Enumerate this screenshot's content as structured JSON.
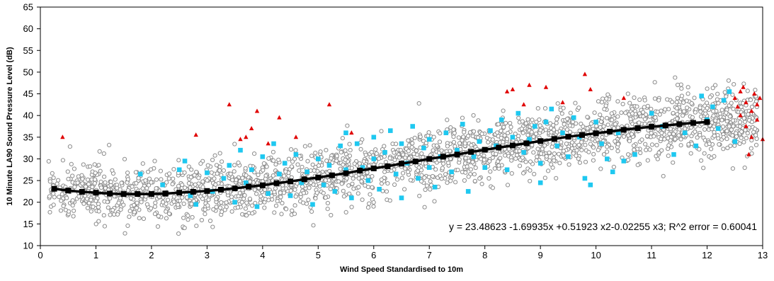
{
  "chart_data": {
    "type": "scatter",
    "title": "",
    "xlabel": "Wind Speed Standardised to 10m",
    "ylabel": "10 Minute LA90 Sound Pressure Level (dB)",
    "xlim": [
      0,
      13
    ],
    "ylim": [
      10,
      65
    ],
    "x_ticks": [
      0,
      1,
      2,
      3,
      4,
      5,
      6,
      7,
      8,
      9,
      10,
      11,
      12,
      13
    ],
    "y_ticks": [
      10,
      15,
      20,
      25,
      30,
      35,
      40,
      45,
      50,
      55,
      60,
      65
    ],
    "grid": false,
    "legend": "none",
    "annotation": "y = 23.48623 -1.69935x +0.51923 x2-0.02255 x3; R^2 error = 0.60041",
    "colors": {
      "grey_points": "#8c8c8c",
      "blue_points": "#1fc8f0",
      "red_points": "#e00000",
      "fit_line": "#000000"
    },
    "series": [
      {
        "marker": "open-circle",
        "color": "#8c8c8c",
        "generator": {
          "count": 2400,
          "x_range": [
            0.15,
            12.9
          ],
          "seed": 11,
          "spread": 3.6,
          "curve": "fit"
        }
      },
      {
        "marker": "square",
        "color": "#1fc8f0",
        "points": [
          [
            1.8,
            26.5
          ],
          [
            2.2,
            24
          ],
          [
            2.5,
            27.5
          ],
          [
            2.6,
            29.5
          ],
          [
            2.7,
            21.5
          ],
          [
            2.8,
            19.5
          ],
          [
            3.0,
            26.8
          ],
          [
            3.1,
            22.5
          ],
          [
            3.3,
            25.5
          ],
          [
            3.4,
            28.5
          ],
          [
            3.5,
            20
          ],
          [
            3.6,
            32
          ],
          [
            3.7,
            24.5
          ],
          [
            3.8,
            27.5
          ],
          [
            3.9,
            19
          ],
          [
            4.0,
            30.5
          ],
          [
            4.1,
            22
          ],
          [
            4.2,
            33.5
          ],
          [
            4.3,
            26.5
          ],
          [
            4.4,
            29
          ],
          [
            4.5,
            21.5
          ],
          [
            4.6,
            31
          ],
          [
            4.7,
            24.5
          ],
          [
            4.8,
            27
          ],
          [
            4.9,
            19.5
          ],
          [
            5.0,
            30
          ],
          [
            5.1,
            24
          ],
          [
            5.2,
            28.5
          ],
          [
            5.3,
            22.5
          ],
          [
            5.4,
            33
          ],
          [
            5.5,
            36
          ],
          [
            5.5,
            27.5
          ],
          [
            5.6,
            21
          ],
          [
            5.7,
            33.5
          ],
          [
            5.8,
            28
          ],
          [
            5.9,
            25
          ],
          [
            6.0,
            35
          ],
          [
            6.0,
            30
          ],
          [
            6.1,
            23
          ],
          [
            6.2,
            31.5
          ],
          [
            6.3,
            36.5
          ],
          [
            6.4,
            26.5
          ],
          [
            6.5,
            33.5
          ],
          [
            6.5,
            21
          ],
          [
            6.6,
            29
          ],
          [
            6.7,
            37.5
          ],
          [
            6.8,
            25.5
          ],
          [
            6.9,
            32.5
          ],
          [
            7.0,
            28
          ],
          [
            7.0,
            34.5
          ],
          [
            7.1,
            23.5
          ],
          [
            7.2,
            30.5
          ],
          [
            7.3,
            36
          ],
          [
            7.4,
            27
          ],
          [
            7.5,
            32
          ],
          [
            7.6,
            38
          ],
          [
            7.7,
            22.5
          ],
          [
            7.8,
            30.5
          ],
          [
            7.9,
            34
          ],
          [
            8.0,
            28
          ],
          [
            8.1,
            36.5
          ],
          [
            8.2,
            33
          ],
          [
            8.3,
            39
          ],
          [
            8.4,
            27.5
          ],
          [
            8.5,
            35
          ],
          [
            8.6,
            40.5
          ],
          [
            8.7,
            31.5
          ],
          [
            8.8,
            34.5
          ],
          [
            8.9,
            37.5
          ],
          [
            9.0,
            29
          ],
          [
            9.0,
            24.5
          ],
          [
            9.1,
            38.5
          ],
          [
            9.2,
            41.5
          ],
          [
            9.3,
            33
          ],
          [
            9.4,
            36
          ],
          [
            9.5,
            30.5
          ],
          [
            9.6,
            39.5
          ],
          [
            9.7,
            35
          ],
          [
            9.8,
            25.5
          ],
          [
            9.9,
            24
          ],
          [
            10.0,
            38.5
          ],
          [
            10.1,
            33.5
          ],
          [
            10.2,
            30
          ],
          [
            10.3,
            27
          ],
          [
            10.4,
            36
          ],
          [
            10.5,
            29.5
          ],
          [
            10.7,
            31
          ],
          [
            11.0,
            40.5
          ],
          [
            11.2,
            37.5
          ],
          [
            11.4,
            31
          ],
          [
            11.6,
            36
          ],
          [
            11.8,
            33
          ],
          [
            11.9,
            44.5
          ],
          [
            12.0,
            39
          ],
          [
            12.1,
            42
          ],
          [
            12.2,
            37
          ],
          [
            12.3,
            43.5
          ],
          [
            12.4,
            45.5
          ],
          [
            12.5,
            34
          ]
        ]
      },
      {
        "marker": "triangle",
        "color": "#e00000",
        "points": [
          [
            0.4,
            35
          ],
          [
            2.8,
            35.5
          ],
          [
            3.4,
            42.5
          ],
          [
            3.6,
            34.5
          ],
          [
            3.7,
            35
          ],
          [
            3.8,
            37
          ],
          [
            3.9,
            41
          ],
          [
            4.1,
            33.5
          ],
          [
            4.3,
            39.5
          ],
          [
            4.6,
            35
          ],
          [
            5.2,
            42.5
          ],
          [
            5.6,
            36
          ],
          [
            8.4,
            45.5
          ],
          [
            8.5,
            46
          ],
          [
            8.7,
            42.5
          ],
          [
            8.8,
            47
          ],
          [
            9.1,
            46.5
          ],
          [
            9.4,
            43
          ],
          [
            9.8,
            49.5
          ],
          [
            9.9,
            46
          ],
          [
            10.5,
            44
          ],
          [
            12.5,
            44
          ],
          [
            12.6,
            40
          ],
          [
            12.6,
            45.5
          ],
          [
            12.7,
            43
          ],
          [
            12.7,
            37.5
          ],
          [
            12.8,
            41
          ],
          [
            12.8,
            35
          ],
          [
            12.85,
            45
          ],
          [
            12.9,
            42.5
          ],
          [
            12.9,
            39
          ],
          [
            12.95,
            44
          ],
          [
            13.0,
            34.5
          ],
          [
            12.75,
            31
          ],
          [
            12.65,
            46.5
          ],
          [
            12.55,
            42
          ]
        ]
      },
      {
        "name": "",
        "marker": "filled-square-line",
        "color": "#000000",
        "x": [
          0.25,
          0.5,
          0.75,
          1.0,
          1.25,
          1.5,
          1.75,
          2.0,
          2.25,
          2.5,
          2.75,
          3.0,
          3.25,
          3.5,
          3.75,
          4.0,
          4.25,
          4.5,
          4.75,
          5.0,
          5.25,
          5.5,
          5.75,
          6.0,
          6.25,
          6.5,
          6.75,
          7.0,
          7.25,
          7.5,
          7.75,
          8.0,
          8.25,
          8.5,
          8.75,
          9.0,
          9.25,
          9.5,
          9.75,
          10.0,
          10.25,
          10.5,
          10.75,
          11.0,
          11.25,
          11.5,
          11.75,
          12.0
        ],
        "y": [
          23.1,
          22.7,
          22.4,
          22.2,
          22.0,
          21.9,
          21.9,
          21.9,
          22.0,
          22.2,
          22.4,
          22.6,
          22.9,
          23.2,
          23.6,
          23.9,
          24.4,
          24.8,
          25.3,
          25.7,
          26.2,
          26.7,
          27.3,
          27.8,
          28.3,
          28.9,
          29.4,
          30.0,
          30.5,
          31.0,
          31.6,
          32.1,
          32.6,
          33.1,
          33.6,
          34.1,
          34.6,
          35.1,
          35.5,
          35.9,
          36.3,
          36.7,
          37.1,
          37.4,
          37.7,
          38.0,
          38.3,
          38.5
        ]
      }
    ]
  }
}
